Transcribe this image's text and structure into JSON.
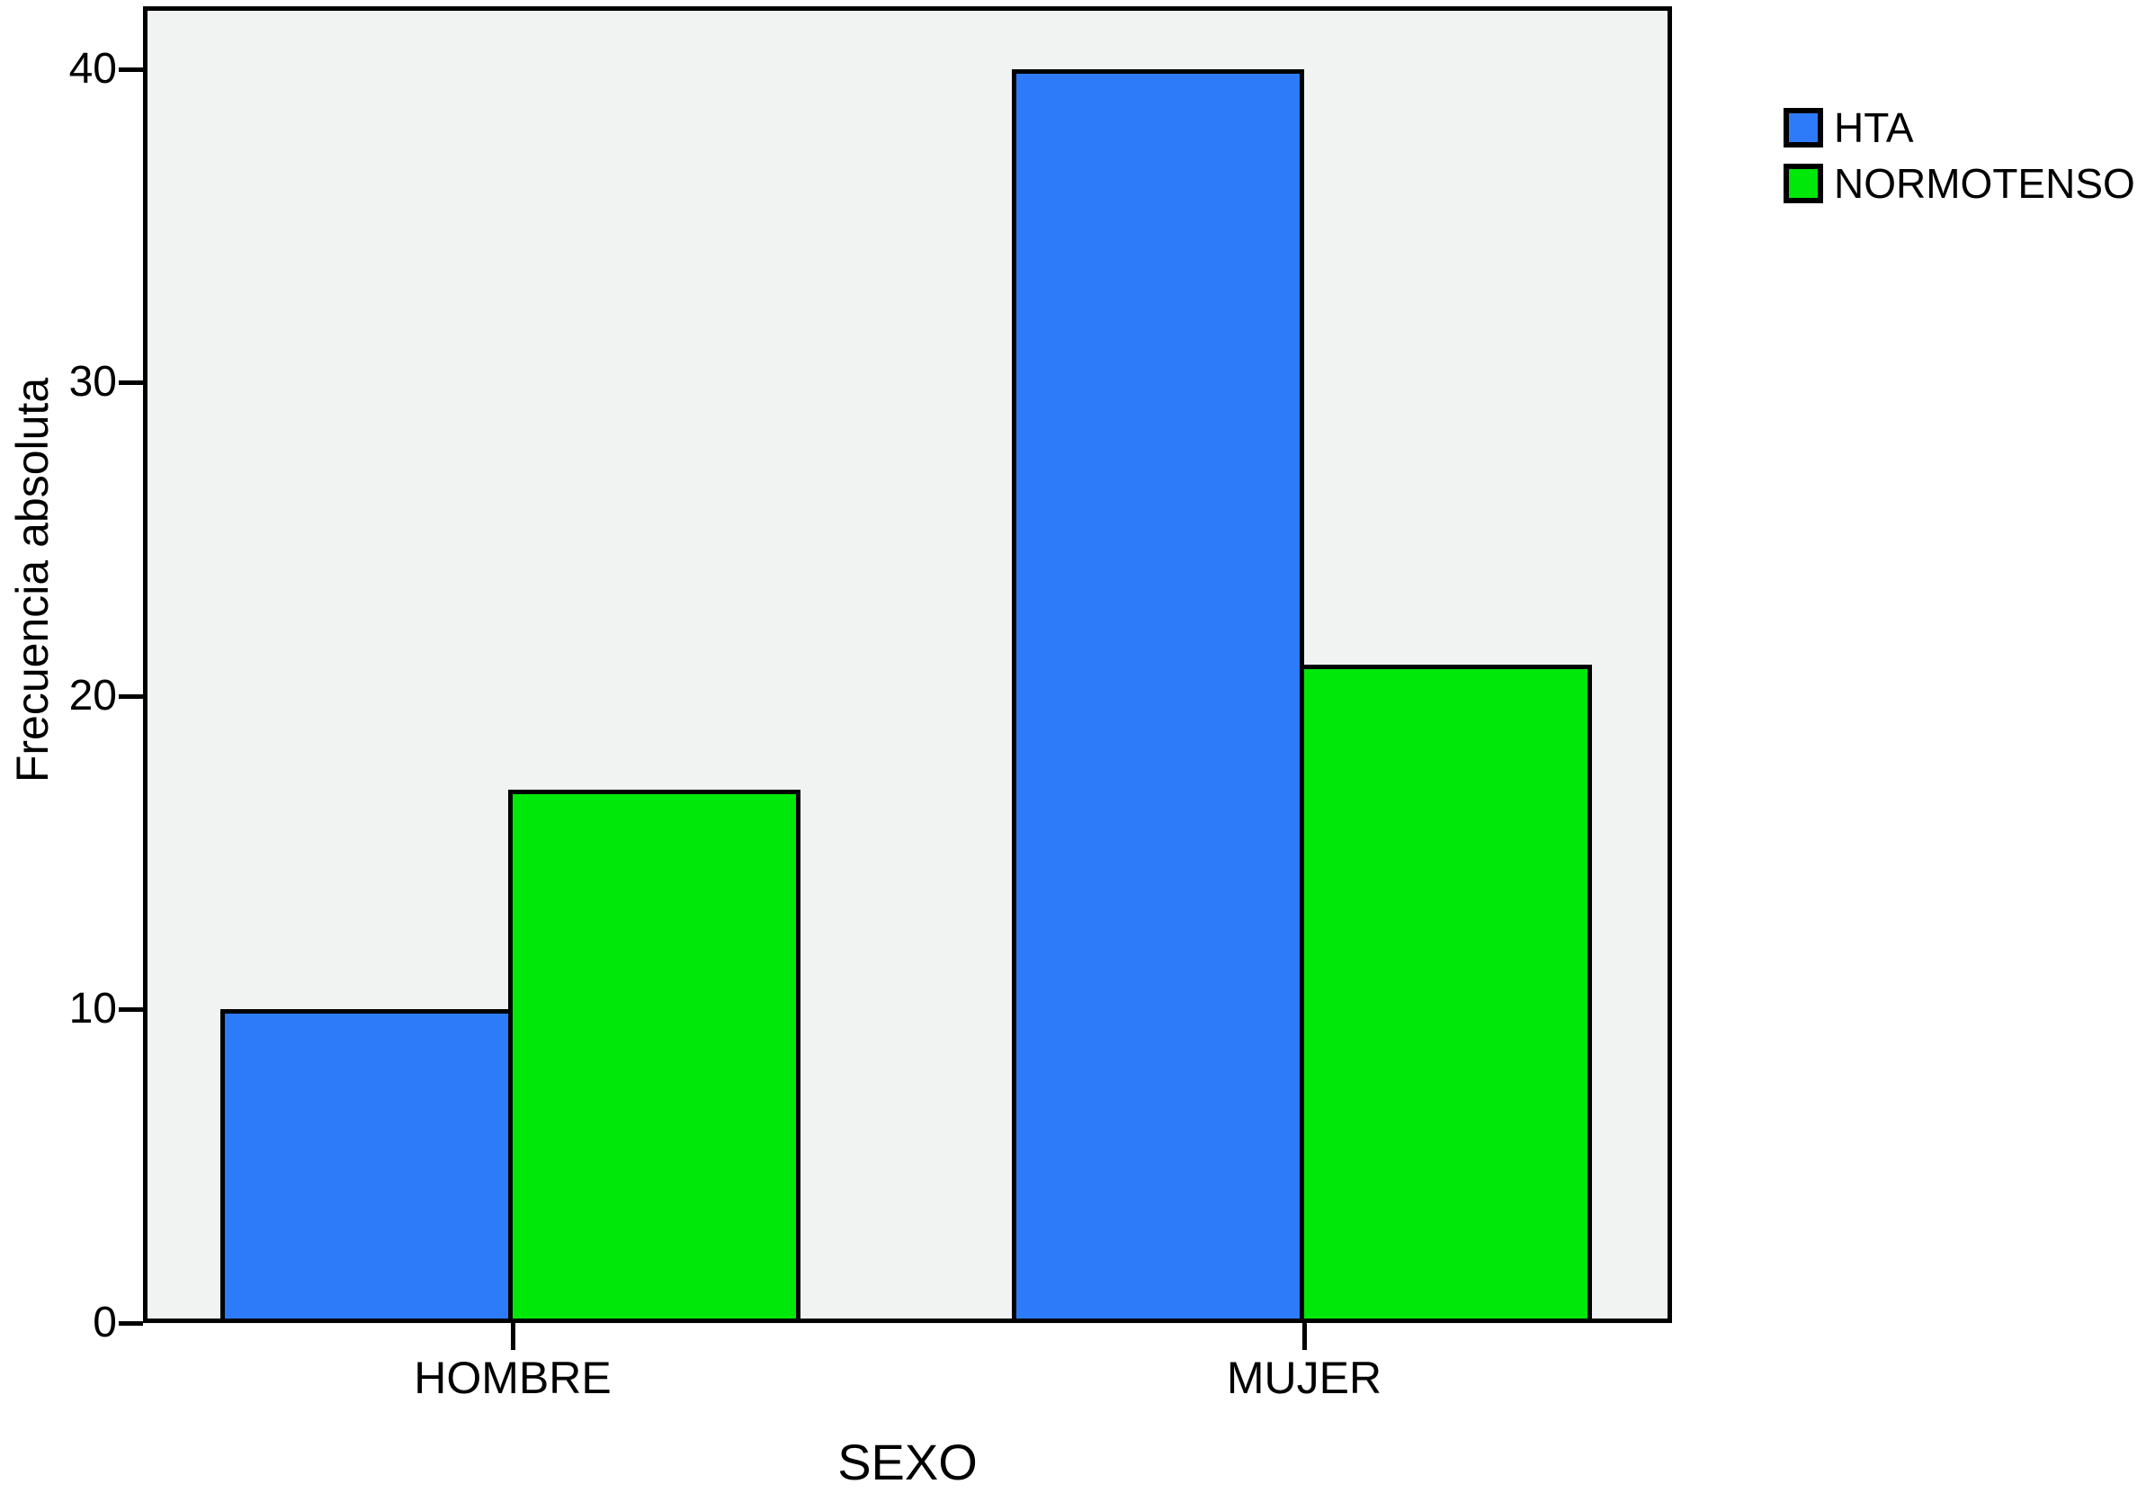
{
  "chart_data": {
    "type": "bar",
    "title": "",
    "xlabel": "SEXO",
    "ylabel": "Frecuencia absoluta",
    "categories": [
      "HOMBRE",
      "MUJER"
    ],
    "series": [
      {
        "name": "HTA",
        "color": "#2e7bfa",
        "values": [
          10,
          40
        ]
      },
      {
        "name": "NORMOTENSO",
        "color": "#00e80a",
        "values": [
          17,
          21
        ]
      }
    ],
    "yticks": [
      0,
      10,
      20,
      30,
      40
    ],
    "ylim": [
      0,
      42
    ],
    "grid": false,
    "legend_position": "outside-top-right",
    "plot_background": "#f0f3f2",
    "axis_color": "#000000",
    "bar_border_color": "#000000"
  }
}
